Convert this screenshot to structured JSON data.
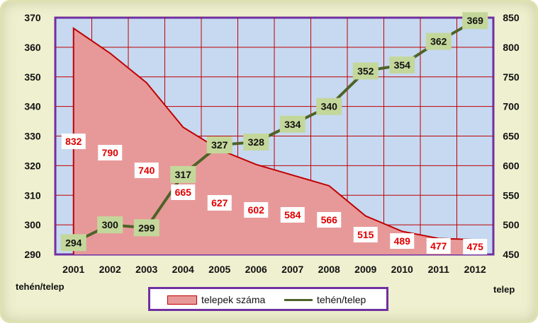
{
  "chart_data": {
    "type": "line",
    "categories": [
      "2001",
      "2002",
      "2003",
      "2004",
      "2005",
      "2006",
      "2007",
      "2008",
      "2009",
      "2010",
      "2011",
      "2012"
    ],
    "series": [
      {
        "name": "telepek száma",
        "type": "area",
        "axis": "right",
        "values": [
          832,
          790,
          740,
          665,
          627,
          602,
          584,
          566,
          515,
          489,
          477,
          475
        ],
        "labels": [
          "832",
          "790",
          "740",
          "665",
          "627",
          "602",
          "584",
          "566",
          "515",
          "489",
          "477",
          "475"
        ]
      },
      {
        "name": "tehén/telep",
        "type": "line",
        "axis": "left",
        "values": [
          294,
          300,
          299,
          317,
          327,
          328,
          334,
          340,
          352,
          354,
          362,
          369
        ],
        "labels": [
          "294",
          "300",
          "299",
          "317",
          "327",
          "328",
          "334",
          "340",
          "352",
          "354",
          "362",
          "369"
        ]
      }
    ],
    "y_left": {
      "label": "tehén/telep",
      "ylim": [
        290,
        370
      ],
      "ticks": [
        "290",
        "300",
        "310",
        "320",
        "330",
        "340",
        "350",
        "360",
        "370"
      ]
    },
    "y_right": {
      "label": "telep",
      "ylim": [
        450,
        850
      ],
      "ticks": [
        "450",
        "500",
        "550",
        "600",
        "650",
        "700",
        "750",
        "800",
        "850"
      ]
    },
    "grid": true,
    "legend_position": "bottom",
    "colors": {
      "area_fill": "#e79999",
      "area_line": "#c00000",
      "line": "#4f6228",
      "label_box": "#c4d79b",
      "plot_bg": "#c6d9f1",
      "plot_border": "#7030a0"
    }
  }
}
